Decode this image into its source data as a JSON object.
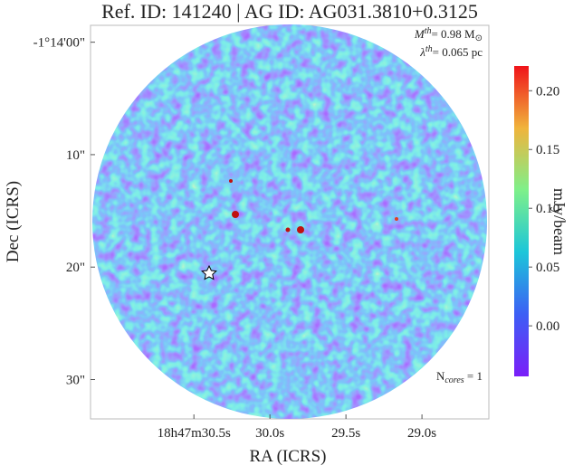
{
  "chart_data": {
    "type": "image",
    "title": "Ref. ID: 141240 | AG ID: AG031.3810+0.3125",
    "x_label": "RA (ICRS)",
    "y_label": "Dec (ICRS)",
    "xlim": [
      31.18,
      28.56
    ],
    "xticks": [
      {
        "value": 30.5,
        "label": "18h47m30.5s"
      },
      {
        "value": 30.0,
        "label": "30.0s"
      },
      {
        "value": 29.5,
        "label": "29.5s"
      },
      {
        "value": 29.0,
        "label": "29.0s"
      }
    ],
    "ylim": [
      -1.5,
      33.5
    ],
    "yticks": [
      {
        "value": 0,
        "label": "-1°14'00\""
      },
      {
        "value": 10,
        "label": "10\""
      },
      {
        "value": 20,
        "label": "20\""
      },
      {
        "value": 30,
        "label": "30\""
      }
    ],
    "annotations": [
      {
        "parts": [
          "M",
          "th",
          "= 0.98 M",
          "⊙"
        ]
      },
      {
        "parts": [
          "λ",
          "th",
          "= 0.065 pc"
        ]
      },
      {
        "parts": [
          "N",
          "cores",
          " = 1"
        ]
      }
    ],
    "colorbar": {
      "label": "mJy/beam",
      "clim": [
        -0.043,
        0.221
      ],
      "ticks": [
        {
          "value": 0,
          "label": "0.00"
        },
        {
          "value": 0.05,
          "label": "0.05"
        },
        {
          "value": 0.1,
          "label": "0.10"
        },
        {
          "value": 0.15,
          "label": "0.15"
        },
        {
          "value": 0.2,
          "label": "0.20"
        }
      ]
    }
  }
}
